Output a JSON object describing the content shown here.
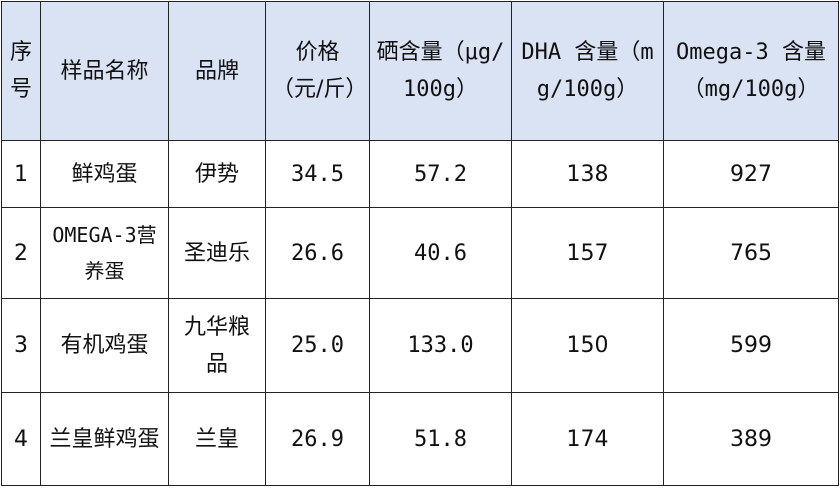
{
  "table": {
    "headers": [
      "序号",
      "样品名称",
      "品牌",
      "价格（元/斤）",
      "硒含量（μg/100g）",
      "DHA 含量（mg/100g）",
      "Omega-3 含量（mg/100g）"
    ],
    "rows": [
      [
        "1",
        "鲜鸡蛋",
        "伊势",
        "34.5",
        "57.2",
        "138",
        "927"
      ],
      [
        "2",
        "OMEGA-3营养蛋",
        "圣迪乐",
        "26.6",
        "40.6",
        "157",
        "765"
      ],
      [
        "3",
        "有机鸡蛋",
        "九华粮品",
        "25.0",
        "133.0",
        "150",
        "599"
      ],
      [
        "4",
        "兰皇鲜鸡蛋",
        "兰皇",
        "26.9",
        "51.8",
        "174",
        "389"
      ]
    ],
    "header_color": "#dae3f3"
  }
}
